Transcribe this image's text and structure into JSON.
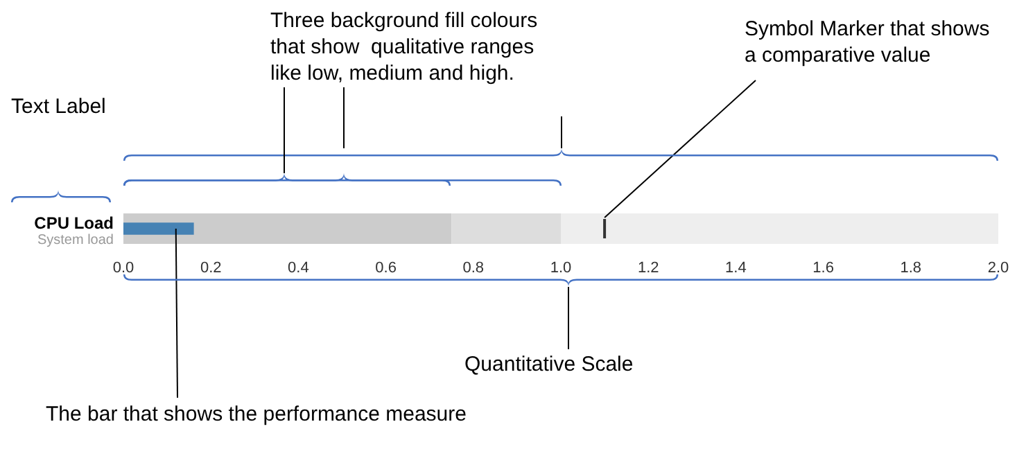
{
  "chart_data": {
    "type": "bar",
    "orientation": "horizontal",
    "categories": [
      "CPU Load"
    ],
    "subtitle": "System load",
    "values": [
      0.16
    ],
    "color": "#4682b4",
    "xlim": [
      0,
      2
    ],
    "xticks": [
      {
        "value": 0,
        "label": "0.0"
      },
      {
        "value": 0.2,
        "label": "0.2"
      },
      {
        "value": 0.4,
        "label": "0.4"
      },
      {
        "value": 0.6,
        "label": "0.6"
      },
      {
        "value": 0.8,
        "label": "0.8"
      },
      {
        "value": 1,
        "label": "1.0"
      },
      {
        "value": 1.2,
        "label": "1.2"
      },
      {
        "value": 1.4,
        "label": "1.4"
      },
      {
        "value": 1.6,
        "label": "1.6"
      },
      {
        "value": 1.8,
        "label": "1.8"
      },
      {
        "value": 2,
        "label": "2.0"
      }
    ],
    "bands": [
      {
        "axis": "x",
        "from": 0,
        "to": 0.75,
        "color": "#cccccc"
      },
      {
        "axis": "x",
        "from": 0.75,
        "to": 1,
        "color": "#dddddd"
      },
      {
        "axis": "x",
        "from": 1,
        "to": 2,
        "color": "#eeeeee"
      }
    ],
    "ref_lines": [
      {
        "axis": "x",
        "value": 1.1,
        "color": "#333333"
      }
    ],
    "annotations": [
      "Text Label",
      "Three background fill colours\nthat show  qualitative ranges\nlike low, medium and high.",
      {
        "text": "Symbol Marker that shows\na comparative value",
        "x": 1.1,
        "y": "CPU Load"
      },
      "Quantitative Scale",
      {
        "text": "The bar that shows the performance measure",
        "x": 0.12,
        "y": "CPU Load"
      }
    ],
    "grid": false,
    "legend": false
  }
}
